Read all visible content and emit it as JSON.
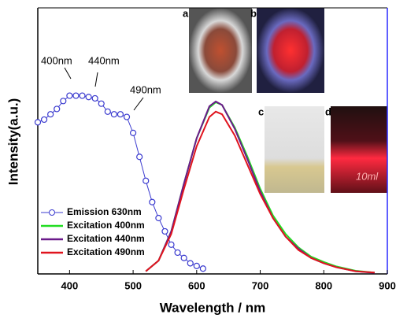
{
  "chart_data": {
    "type": "line",
    "x_label": "Wavelength / nm",
    "y_label": "Intensity(a.u.)",
    "xlim": [
      350,
      900
    ],
    "ylim": [
      0,
      1
    ],
    "xticks": [
      400,
      500,
      600,
      700,
      800,
      900
    ],
    "annotations": [
      "400nm",
      "440nm",
      "490nm"
    ],
    "photo_labels": [
      "a",
      "b",
      "c",
      "d"
    ],
    "photo_text": "10ml",
    "series": [
      {
        "name": "Emission 630nm",
        "color": "#3b3bcf",
        "marker": "circle",
        "x": [
          350,
          360,
          370,
          380,
          390,
          400,
          410,
          420,
          430,
          440,
          450,
          460,
          470,
          480,
          490,
          500,
          510,
          520,
          530,
          540,
          550,
          560,
          570,
          580,
          590,
          600,
          610
        ],
        "values": [
          0.57,
          0.58,
          0.6,
          0.62,
          0.65,
          0.67,
          0.67,
          0.67,
          0.665,
          0.66,
          0.64,
          0.61,
          0.6,
          0.6,
          0.59,
          0.53,
          0.44,
          0.35,
          0.27,
          0.21,
          0.16,
          0.11,
          0.08,
          0.06,
          0.04,
          0.03,
          0.02
        ]
      },
      {
        "name": "Excitation 400nm",
        "color": "#22dd22",
        "x": [
          520,
          540,
          560,
          580,
          600,
          620,
          630,
          640,
          660,
          680,
          700,
          720,
          740,
          760,
          780,
          800,
          820,
          850,
          880
        ],
        "values": [
          0.01,
          0.05,
          0.16,
          0.34,
          0.51,
          0.625,
          0.645,
          0.635,
          0.55,
          0.44,
          0.32,
          0.22,
          0.15,
          0.1,
          0.065,
          0.045,
          0.028,
          0.012,
          0.005
        ]
      },
      {
        "name": "Excitation 440nm",
        "color": "#6a1a8a",
        "x": [
          520,
          540,
          560,
          580,
          600,
          620,
          630,
          640,
          660,
          680,
          700,
          720,
          740,
          760,
          780,
          800,
          820,
          850,
          880
        ],
        "values": [
          0.01,
          0.05,
          0.16,
          0.34,
          0.51,
          0.63,
          0.648,
          0.635,
          0.545,
          0.43,
          0.31,
          0.21,
          0.14,
          0.095,
          0.06,
          0.04,
          0.025,
          0.01,
          0.004
        ]
      },
      {
        "name": "Excitation 490nm",
        "color": "#e0141e",
        "x": [
          520,
          540,
          560,
          580,
          600,
          620,
          630,
          640,
          660,
          680,
          700,
          720,
          740,
          760,
          780,
          800,
          820,
          850,
          880
        ],
        "values": [
          0.01,
          0.05,
          0.15,
          0.32,
          0.48,
          0.59,
          0.61,
          0.6,
          0.52,
          0.41,
          0.3,
          0.21,
          0.14,
          0.09,
          0.06,
          0.04,
          0.025,
          0.01,
          0.005
        ]
      }
    ]
  }
}
